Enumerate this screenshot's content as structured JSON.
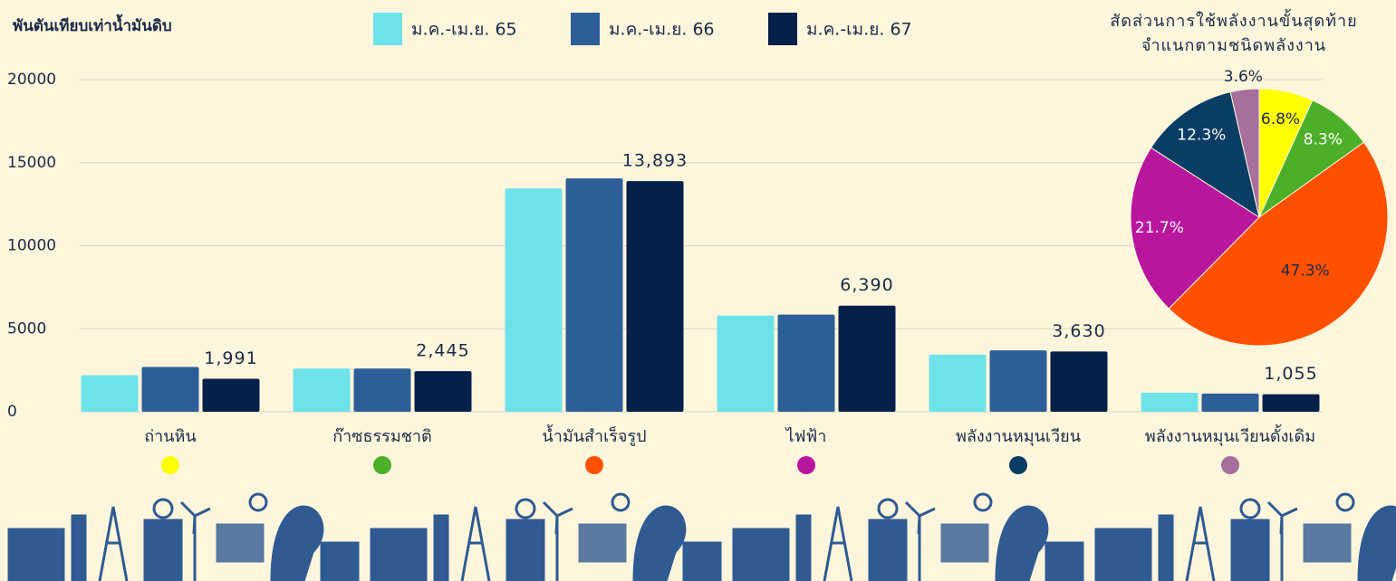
{
  "chart_data": [
    {
      "type": "bar",
      "y_axis_label": "พันตันเทียบเท่าน้ำมันดิบ",
      "categories": [
        "ถ่านหิน",
        "ก๊าซธรรมชาติ",
        "น้ำมันสำเร็จรูป",
        "ไฟฟ้า",
        "พลังงานหมุนเวียน",
        "พลังงานหมุนเวียนดั้งเดิม"
      ],
      "series": [
        {
          "name": "ม.ค.-เม.ย. 65",
          "color": "#6de3e9",
          "values": [
            2200,
            2600,
            13450,
            5800,
            3450,
            1150
          ]
        },
        {
          "name": "ม.ค.-เม.ย. 66",
          "color": "#2e5e98",
          "values": [
            2700,
            2600,
            14050,
            5850,
            3700,
            1100
          ]
        },
        {
          "name": "ม.ค.-เม.ย. 67",
          "color": "#06204a",
          "values": [
            1991,
            2445,
            13893,
            6390,
            3630,
            1055
          ],
          "value_labels": [
            "1,991",
            "2,445",
            "13,893",
            "6,390",
            "3,630",
            "1,055"
          ]
        }
      ],
      "ylim": [
        0,
        20000
      ],
      "yticks": [
        0,
        5000,
        10000,
        15000,
        20000
      ],
      "grid": true,
      "legend": "top"
    },
    {
      "type": "pie",
      "title": [
        "สัดส่วนการใช้พลังงานขั้นสุดท้าย",
        "จำแนกตามชนิดพลังงาน"
      ],
      "values": [
        6.8,
        8.3,
        47.3,
        21.7,
        12.3,
        3.6
      ],
      "value_labels": [
        "6.8%",
        "8.3%",
        "47.3%",
        "21.7%",
        "12.3%",
        "3.6%"
      ],
      "colors": [
        "#ffff00",
        "#4caf2a",
        "#ff5000",
        "#b9169e",
        "#0a3d64",
        "#a66f9c"
      ]
    }
  ]
}
